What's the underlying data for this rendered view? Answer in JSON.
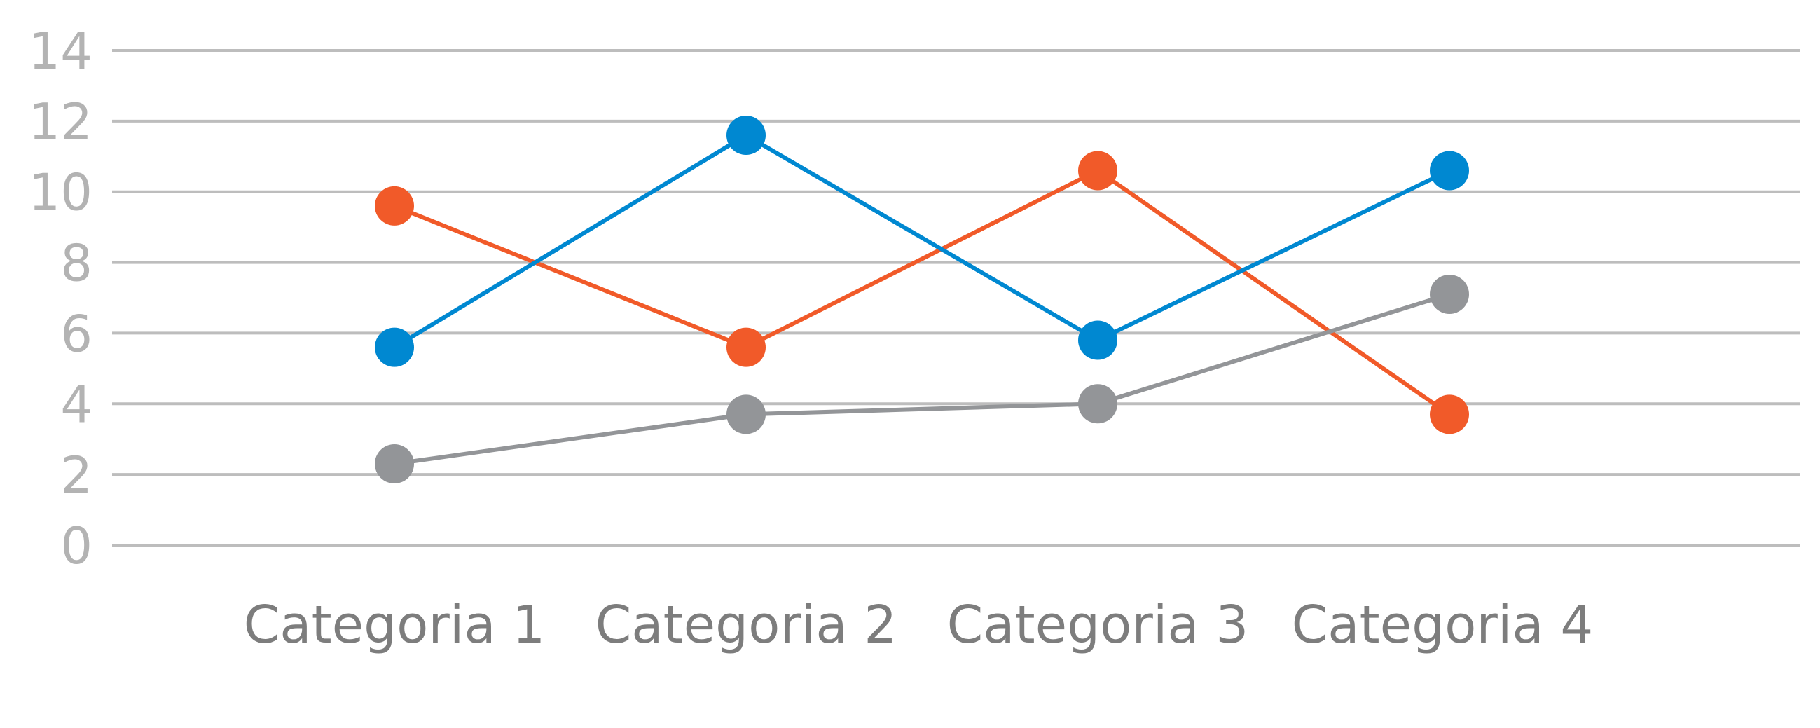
{
  "chart_data": {
    "type": "line",
    "categories": [
      "Categoria 1",
      "Categoria 2",
      "Categoria 3",
      "Categoria 4"
    ],
    "series": [
      {
        "color": "#f15a29",
        "values": [
          9.6,
          5.6,
          10.6,
          3.7
        ]
      },
      {
        "color": "#0088d1",
        "values": [
          5.6,
          11.6,
          5.8,
          10.6
        ]
      },
      {
        "color": "#939598",
        "values": [
          2.3,
          3.7,
          4.0,
          7.1
        ]
      }
    ],
    "ylim": [
      0,
      14
    ],
    "yticks": [
      "0",
      "2",
      "4",
      "6",
      "8",
      "10",
      "12",
      "14"
    ],
    "grid": true,
    "legend": "none"
  }
}
